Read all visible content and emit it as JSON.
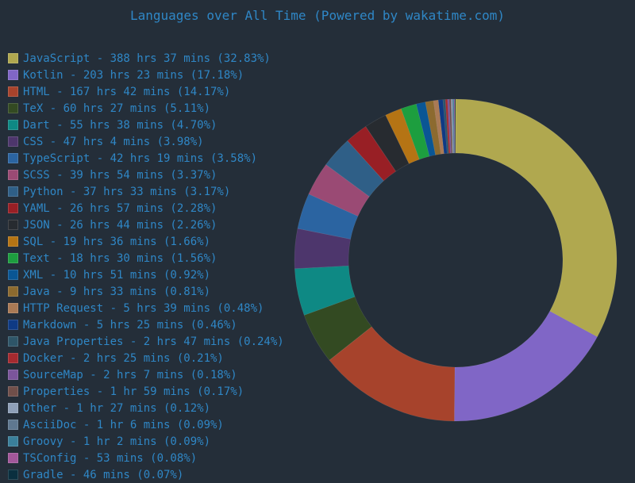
{
  "chart_data": {
    "type": "pie",
    "title": "Languages over All Time (Powered by wakatime.com)",
    "series": [
      {
        "name": "JavaScript",
        "label": "JavaScript - 388 hrs 37 mins (32.83%)",
        "value": 32.83,
        "color": "#b0a84f"
      },
      {
        "name": "Kotlin",
        "label": "Kotlin - 203 hrs 23 mins (17.18%)",
        "value": 17.18,
        "color": "#8066c6"
      },
      {
        "name": "HTML",
        "label": "HTML - 167 hrs 42 mins (14.17%)",
        "value": 14.17,
        "color": "#a7432c"
      },
      {
        "name": "TeX",
        "label": "TeX - 60 hrs 27 mins (5.11%)",
        "value": 5.11,
        "color": "#334a22"
      },
      {
        "name": "Dart",
        "label": "Dart - 55 hrs 38 mins (4.70%)",
        "value": 4.7,
        "color": "#0e8984"
      },
      {
        "name": "CSS",
        "label": "CSS - 47 hrs 4 mins (3.98%)",
        "value": 3.98,
        "color": "#4d366c"
      },
      {
        "name": "TypeScript",
        "label": "TypeScript - 42 hrs 19 mins (3.58%)",
        "value": 3.58,
        "color": "#2b64a1"
      },
      {
        "name": "SCSS",
        "label": "SCSS - 39 hrs 54 mins (3.37%)",
        "value": 3.37,
        "color": "#9a4a74"
      },
      {
        "name": "Python",
        "label": "Python - 37 hrs 33 mins (3.17%)",
        "value": 3.17,
        "color": "#2f5f87"
      },
      {
        "name": "YAML",
        "label": "YAML - 26 hrs 57 mins (2.28%)",
        "value": 2.28,
        "color": "#981f25"
      },
      {
        "name": "JSON",
        "label": "JSON - 26 hrs 44 mins (2.26%)",
        "value": 2.26,
        "color": "#272b30"
      },
      {
        "name": "SQL",
        "label": "SQL - 19 hrs 36 mins (1.66%)",
        "value": 1.66,
        "color": "#b57414"
      },
      {
        "name": "Text",
        "label": "Text - 18 hrs 30 mins (1.56%)",
        "value": 1.56,
        "color": "#1d9e3f"
      },
      {
        "name": "XML",
        "label": "XML - 10 hrs 51 mins (0.92%)",
        "value": 0.92,
        "color": "#0a5694"
      },
      {
        "name": "Java",
        "label": "Java - 9 hrs 33 mins (0.81%)",
        "value": 0.81,
        "color": "#8c6a2f"
      },
      {
        "name": "HTTP Request",
        "label": "HTTP Request - 5 hrs 39 mins (0.48%)",
        "value": 0.48,
        "color": "#aa7a55"
      },
      {
        "name": "Markdown",
        "label": "Markdown - 5 hrs 25 mins (0.46%)",
        "value": 0.46,
        "color": "#0f3a84"
      },
      {
        "name": "Java Properties",
        "label": "Java Properties - 2 hrs 47 mins (0.24%)",
        "value": 0.24,
        "color": "#2e5568"
      },
      {
        "name": "Docker",
        "label": "Docker - 2 hrs 25 mins (0.21%)",
        "value": 0.21,
        "color": "#a52a2f"
      },
      {
        "name": "SourceMap",
        "label": "SourceMap - 2 hrs 7 mins (0.18%)",
        "value": 0.18,
        "color": "#7b559b"
      },
      {
        "name": "Properties",
        "label": "Properties - 1 hr 59 mins (0.17%)",
        "value": 0.17,
        "color": "#704f4a"
      },
      {
        "name": "Other",
        "label": "Other - 1 hr 27 mins (0.12%)",
        "value": 0.12,
        "color": "#8fa0b8"
      },
      {
        "name": "AsciiDoc",
        "label": "AsciiDoc - 1 hr 6 mins (0.09%)",
        "value": 0.09,
        "color": "#5f7890"
      },
      {
        "name": "Groovy",
        "label": "Groovy - 1 hr 2 mins (0.09%)",
        "value": 0.09,
        "color": "#3a7f9a"
      },
      {
        "name": "TSConfig",
        "label": "TSConfig - 53 mins (0.08%)",
        "value": 0.08,
        "color": "#a3579a"
      },
      {
        "name": "Gradle",
        "label": "Gradle - 46 mins (0.07%)",
        "value": 0.07,
        "color": "#0a2f3f"
      }
    ],
    "legend_position": "left"
  }
}
